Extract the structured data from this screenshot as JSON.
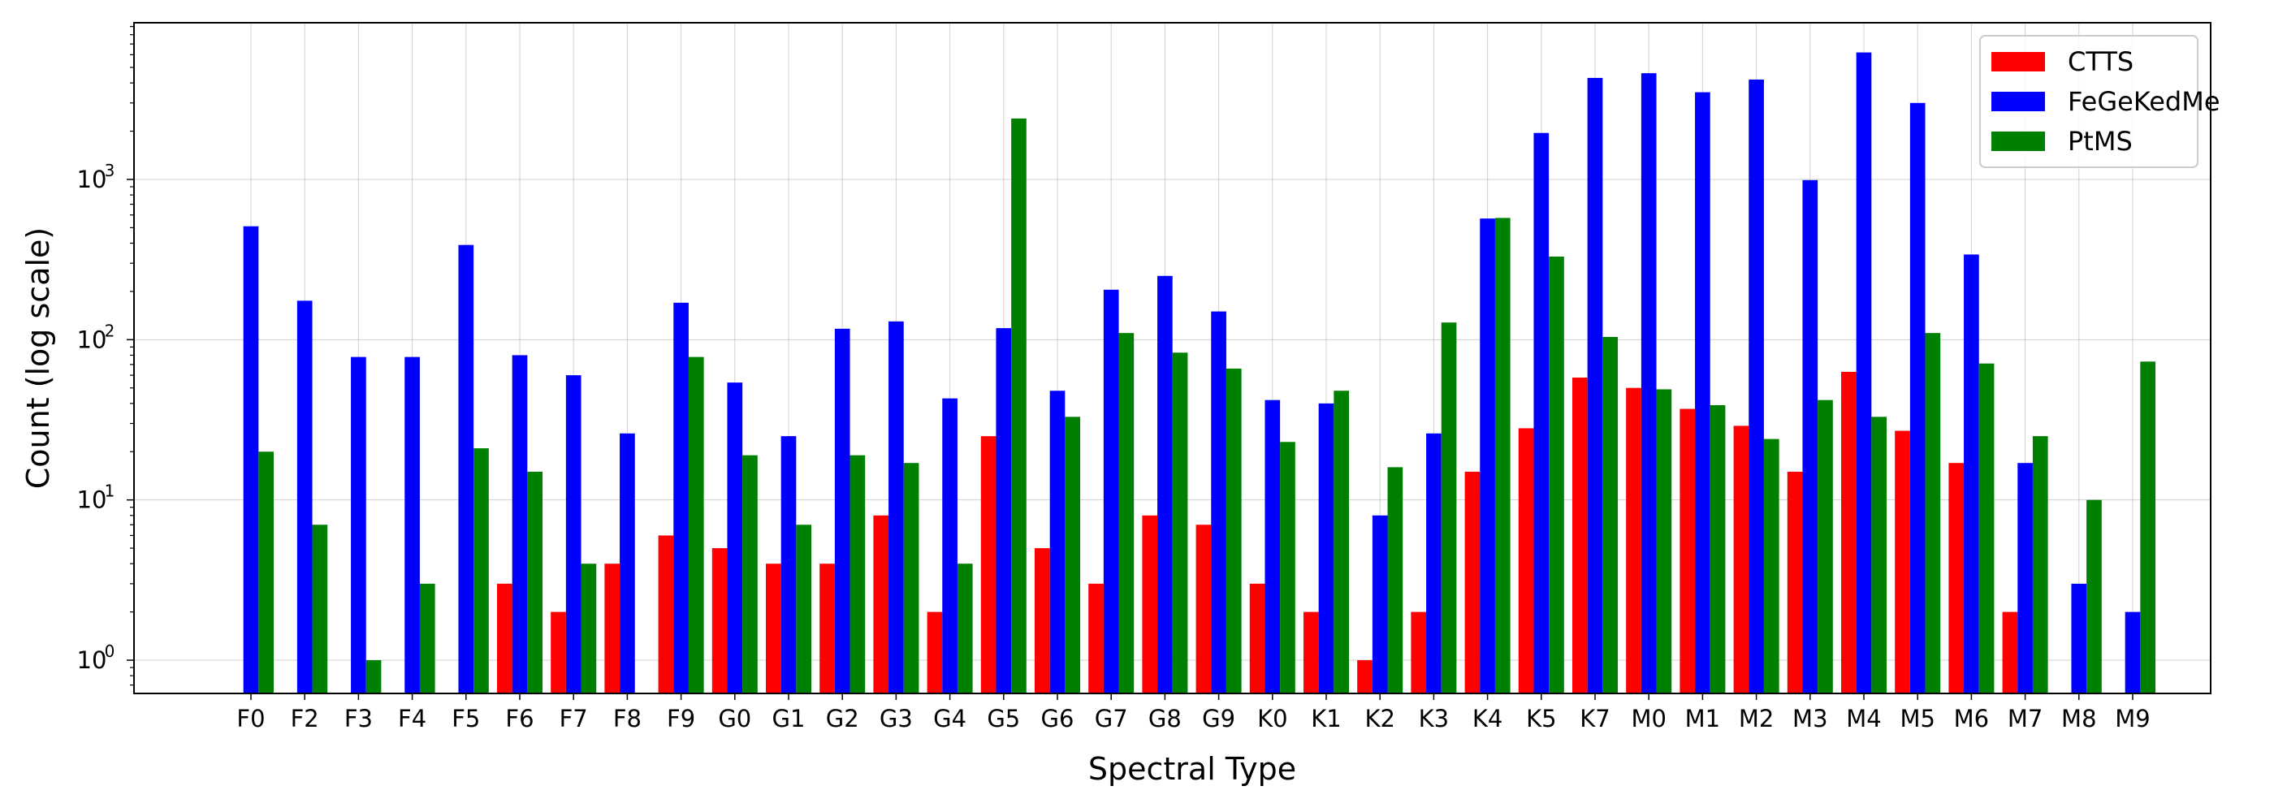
{
  "chart_data": {
    "type": "bar",
    "scale": "log",
    "grid": true,
    "legend_position": "top-right",
    "xlabel": "Spectral Type",
    "ylabel": "Count (log scale)",
    "categories": [
      "F0",
      "F2",
      "F3",
      "F4",
      "F5",
      "F6",
      "F7",
      "F8",
      "F9",
      "G0",
      "G1",
      "G2",
      "G3",
      "G4",
      "G5",
      "G6",
      "G7",
      "G8",
      "G9",
      "K0",
      "K1",
      "K2",
      "K3",
      "K4",
      "K5",
      "K7",
      "M0",
      "M1",
      "M2",
      "M3",
      "M4",
      "M5",
      "M6",
      "M7",
      "M8",
      "M9"
    ],
    "ylim": [
      0.62,
      9500
    ],
    "y_ticks": [
      {
        "value": 1,
        "label": "10",
        "exp": "0"
      },
      {
        "value": 10,
        "label": "10",
        "exp": "1"
      },
      {
        "value": 100,
        "label": "10",
        "exp": "2"
      },
      {
        "value": 1000,
        "label": "10",
        "exp": "3"
      }
    ],
    "series": [
      {
        "name": "CTTS",
        "color": "#ff0000",
        "values": [
          null,
          null,
          null,
          null,
          null,
          3,
          2,
          4,
          6,
          5,
          4,
          4,
          8,
          2,
          25,
          5,
          3,
          8,
          7,
          3,
          2,
          1,
          2,
          15,
          28,
          58,
          50,
          37,
          29,
          15,
          63,
          27,
          17,
          2,
          null,
          null
        ]
      },
      {
        "name": "FeGeKedMe",
        "color": "#0000ff",
        "values": [
          510,
          175,
          78,
          78,
          390,
          80,
          60,
          26,
          170,
          54,
          25,
          117,
          130,
          43,
          118,
          48,
          205,
          250,
          150,
          42,
          40,
          8,
          26,
          570,
          1950,
          4300,
          4600,
          3500,
          4200,
          990,
          6200,
          3000,
          340,
          17,
          3,
          2
        ]
      },
      {
        "name": "PtMS",
        "color": "#008000",
        "values": [
          20,
          7,
          1,
          3,
          21,
          15,
          4,
          null,
          78,
          19,
          7,
          19,
          17,
          4,
          2400,
          33,
          110,
          83,
          66,
          23,
          48,
          16,
          128,
          575,
          330,
          104,
          49,
          39,
          24,
          42,
          33,
          110,
          71,
          25,
          10,
          73
        ]
      }
    ]
  }
}
